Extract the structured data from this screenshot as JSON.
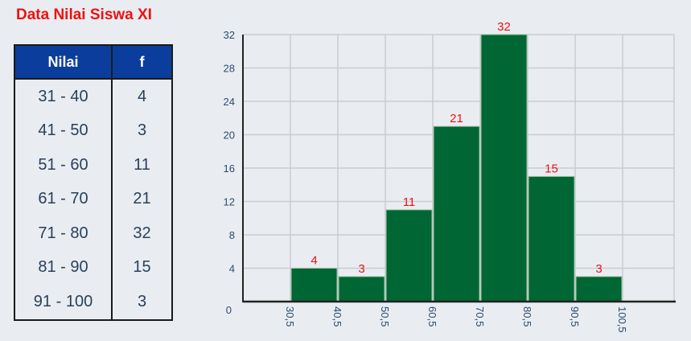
{
  "title": "Data Nilai Siswa XI",
  "table": {
    "headers": [
      "Nilai",
      "f"
    ],
    "rows": [
      [
        "31 - 40",
        "4"
      ],
      [
        "41 - 50",
        "3"
      ],
      [
        "51 - 60",
        "11"
      ],
      [
        "61 - 70",
        "21"
      ],
      [
        "71 - 80",
        "32"
      ],
      [
        "81 - 90",
        "15"
      ],
      [
        "91 - 100",
        "3"
      ]
    ]
  },
  "chart_data": {
    "type": "bar",
    "subtype": "histogram",
    "x_ticks": [
      "30,5",
      "40,5",
      "50,5",
      "60,5",
      "70,5",
      "80,5",
      "90,5",
      "100,5"
    ],
    "bins": [
      [
        30.5,
        40.5
      ],
      [
        40.5,
        50.5
      ],
      [
        50.5,
        60.5
      ],
      [
        60.5,
        70.5
      ],
      [
        70.5,
        80.5
      ],
      [
        80.5,
        90.5
      ],
      [
        90.5,
        100.5
      ]
    ],
    "values": [
      4,
      3,
      11,
      21,
      32,
      15,
      3
    ],
    "data_labels": [
      "4",
      "3",
      "11",
      "21",
      "32",
      "15",
      "3"
    ],
    "y_ticks": [
      "0",
      "4",
      "8",
      "12",
      "16",
      "20",
      "24",
      "28",
      "32"
    ],
    "xlim": [
      20.5,
      111
    ],
    "ylim": [
      0,
      32
    ],
    "grid": true,
    "bar_color": "#006633",
    "label_color": "#ee1111"
  }
}
